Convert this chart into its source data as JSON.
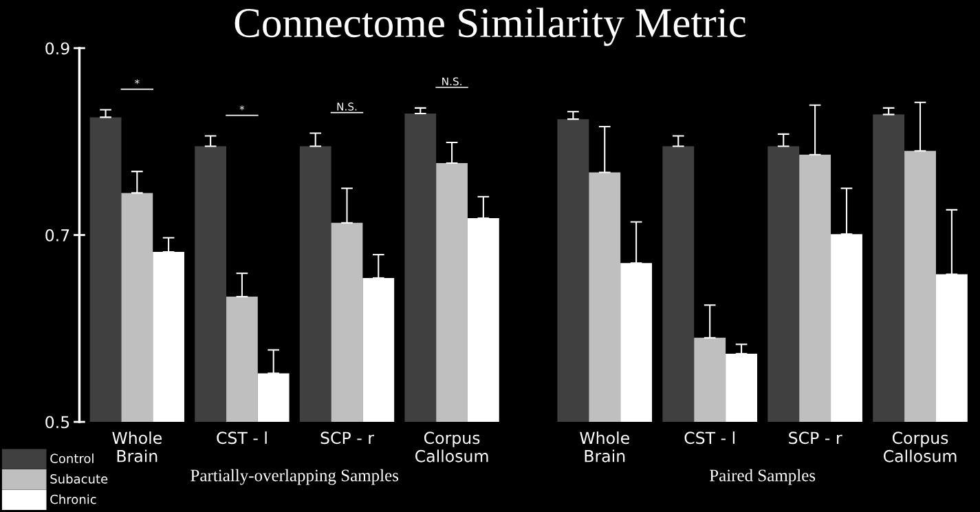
{
  "chart_data": [
    {
      "type": "bar",
      "title": "Connectome Similarity Metric",
      "xlabel": "Partially-overlapping Samples",
      "categories": [
        "Whole\nBrain",
        "CST - l",
        "SCP - r",
        "Corpus\nCallosum"
      ],
      "ylim": [
        0.5,
        0.9
      ],
      "yticks": [
        0.5,
        0.7,
        0.9
      ],
      "grid": false,
      "legend": "bottom left",
      "series": [
        {
          "name": "Control",
          "color": "#404040",
          "values": [
            0.826,
            0.795,
            0.795,
            0.83
          ],
          "errors": [
            [
              0.826,
              0.834
            ],
            [
              0.795,
              0.806
            ],
            [
              0.795,
              0.809
            ],
            [
              0.83,
              0.836
            ]
          ]
        },
        {
          "name": "Subacute",
          "color": "#bfbfbf",
          "values": [
            0.745,
            0.634,
            0.713,
            0.777
          ],
          "errors": [
            [
              0.745,
              0.768
            ],
            [
              0.634,
              0.659
            ],
            [
              0.713,
              0.75
            ],
            [
              0.777,
              0.799
            ]
          ]
        },
        {
          "name": "Chronic",
          "color": "#ffffff",
          "values": [
            0.682,
            0.552,
            0.654,
            0.718
          ],
          "errors": [
            [
              0.682,
              0.697
            ],
            [
              0.552,
              0.577
            ],
            [
              0.654,
              0.679
            ],
            [
              0.718,
              0.741
            ]
          ]
        }
      ],
      "annotations": [
        "*",
        "*",
        "N.S.",
        "N.S."
      ]
    },
    {
      "type": "bar",
      "xlabel": "Paired Samples",
      "categories": [
        "Whole\nBrain",
        "CST - l",
        "SCP - r",
        "Corpus\nCallosum"
      ],
      "ylim": [
        0.5,
        0.9
      ],
      "tick_labels": "x",
      "grid": false,
      "series": [
        {
          "color": "#404040",
          "values": [
            0.824,
            0.795,
            0.795,
            0.829
          ],
          "errors": [
            [
              0.824,
              0.832
            ],
            [
              0.795,
              0.806
            ],
            [
              0.795,
              0.808
            ],
            [
              0.829,
              0.836
            ]
          ]
        },
        {
          "color": "#bfbfbf",
          "values": [
            0.767,
            0.59,
            0.786,
            0.79
          ],
          "errors": [
            [
              0.767,
              0.816
            ],
            [
              0.59,
              0.625
            ],
            [
              0.786,
              0.839
            ],
            [
              0.79,
              0.842
            ]
          ]
        },
        {
          "color": "#ffffff",
          "values": [
            0.67,
            0.573,
            0.701,
            0.658
          ],
          "errors": [
            [
              0.67,
              0.714
            ],
            [
              0.573,
              0.583
            ],
            [
              0.701,
              0.75
            ],
            [
              0.658,
              0.727
            ]
          ]
        }
      ]
    }
  ]
}
